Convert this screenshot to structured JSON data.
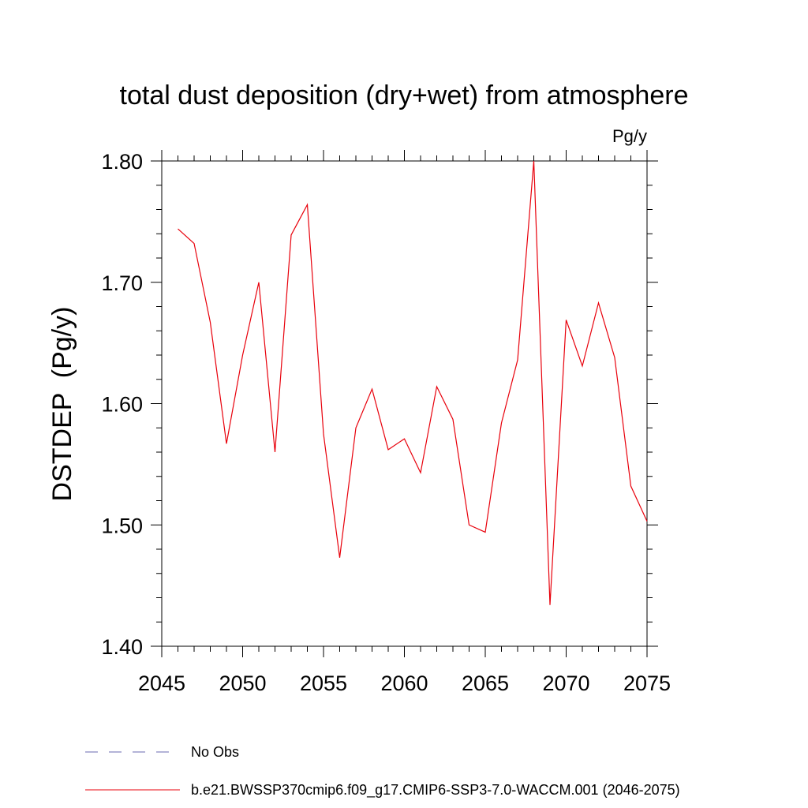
{
  "chart_data": {
    "type": "line",
    "title": "total dust deposition (dry+wet) from atmosphere",
    "units_label": "Pg/y",
    "ylabel": "DSTDEP  (Pg/y)",
    "xlabel": "",
    "xlim": [
      2045,
      2075
    ],
    "ylim": [
      1.4,
      1.8
    ],
    "x_ticks": [
      2045,
      2050,
      2055,
      2060,
      2065,
      2070,
      2075
    ],
    "x_tick_labels": [
      "2045",
      "2050",
      "2055",
      "2060",
      "2065",
      "2070",
      "2075"
    ],
    "y_ticks": [
      1.4,
      1.5,
      1.6,
      1.7,
      1.8
    ],
    "y_tick_labels": [
      "1.40",
      "1.50",
      "1.60",
      "1.70",
      "1.80"
    ],
    "grid": false,
    "legend_position": "bottom",
    "legend": [
      {
        "label": "No Obs",
        "style": "dashed",
        "color": "#6a6ab0"
      },
      {
        "label": "b.e21.BWSSP370cmip6.f09_g17.CMIP6-SSP3-7.0-WACCM.001 (2046-2075)",
        "style": "solid",
        "color": "#e8000b"
      }
    ],
    "series": [
      {
        "name": "b.e21.BWSSP370cmip6.f09_g17.CMIP6-SSP3-7.0-WACCM.001 (2046-2075)",
        "color": "#e8000b",
        "x": [
          2046,
          2047,
          2048,
          2049,
          2050,
          2051,
          2052,
          2053,
          2054,
          2055,
          2056,
          2057,
          2058,
          2059,
          2060,
          2061,
          2062,
          2063,
          2064,
          2065,
          2066,
          2067,
          2068,
          2069,
          2070,
          2071,
          2072,
          2073,
          2074,
          2075
        ],
        "values": [
          1.744,
          1.732,
          1.667,
          1.567,
          1.64,
          1.7,
          1.56,
          1.739,
          1.764,
          1.575,
          1.473,
          1.58,
          1.612,
          1.562,
          1.571,
          1.543,
          1.614,
          1.587,
          1.5,
          1.494,
          1.584,
          1.636,
          1.8,
          1.434,
          1.669,
          1.631,
          1.683,
          1.638,
          1.532,
          1.503
        ]
      }
    ]
  }
}
